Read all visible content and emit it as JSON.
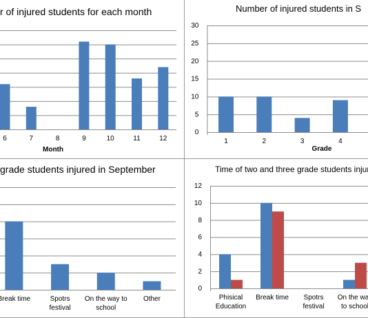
{
  "chart_data": [
    {
      "type": "bar",
      "title": "r of injured students for each month",
      "x_label": "Month",
      "categories": [
        "6",
        "7",
        "8",
        "9",
        "10",
        "11",
        "12"
      ],
      "series": [
        {
          "color": "#4a7ebb",
          "values": [
            16,
            8,
            0,
            31,
            30,
            18,
            22
          ]
        }
      ],
      "ylim": [
        0,
        35
      ],
      "yticks": [
        0,
        5,
        10,
        15,
        20,
        25,
        30,
        35
      ],
      "grid": true
    },
    {
      "type": "bar",
      "title": "Number of injured students in S",
      "x_label": "Grade",
      "categories": [
        "1",
        "2",
        "3",
        "4"
      ],
      "series": [
        {
          "color": "#4a7ebb",
          "values": [
            10,
            10,
            4,
            9
          ]
        }
      ],
      "ylim": [
        0,
        30
      ],
      "yticks": [
        0,
        5,
        10,
        15,
        20,
        25,
        30
      ],
      "grid": true
    },
    {
      "type": "bar",
      "title": "grade students injured in September",
      "categories": [
        "Break time",
        "Spotrs festival",
        "On the way to school",
        "Other"
      ],
      "series": [
        {
          "color": "#4a7ebb",
          "values": [
            8,
            3,
            2,
            1
          ]
        }
      ],
      "ylim": [
        0,
        12
      ],
      "yticks": [
        0,
        2,
        4,
        6,
        8,
        10,
        12
      ],
      "grid": true
    },
    {
      "type": "bar",
      "title": "Time of two and three grade students injure",
      "categories": [
        "Phisical Education",
        "Break time",
        "Spotrs festival",
        "On the way to school"
      ],
      "series": [
        {
          "color": "#4a7ebb",
          "values": [
            4,
            10,
            0,
            1
          ]
        },
        {
          "color": "#be4b48",
          "values": [
            1,
            9,
            0,
            3
          ]
        }
      ],
      "ylim": [
        0,
        12
      ],
      "yticks": [
        0,
        2,
        4,
        6,
        8,
        10,
        12
      ],
      "grid": true
    }
  ]
}
